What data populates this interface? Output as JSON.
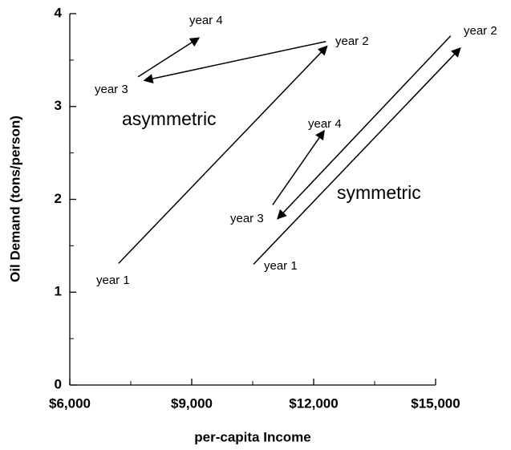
{
  "chart_data": {
    "type": "arrows",
    "x_label": "per-capita Income",
    "y_label": "Oil Demand (tons/person)",
    "xlim": [
      6000,
      15000
    ],
    "ylim": [
      0,
      4
    ],
    "xticks": [
      {
        "value": 6000,
        "label": "$6,000"
      },
      {
        "value": 9000,
        "label": "$9,000"
      },
      {
        "value": 12000,
        "label": "$12,000"
      },
      {
        "value": 15000,
        "label": "$15,000"
      }
    ],
    "xminor_ticks": [
      7500,
      10500,
      13500
    ],
    "yticks": [
      0,
      1,
      2,
      3,
      4
    ],
    "yminor_ticks": [
      0.5,
      1.5,
      2.5,
      3.5
    ],
    "color": "#000000",
    "arrows": [
      {
        "x": [
          7200,
          12330
        ],
        "y": [
          1.31,
          3.65
        ]
      },
      {
        "x": [
          12300,
          7830
        ],
        "y": [
          3.7,
          3.28
        ]
      },
      {
        "x": [
          7680,
          9180
        ],
        "y": [
          3.32,
          3.74
        ]
      },
      {
        "x": [
          10520,
          15610
        ],
        "y": [
          1.3,
          3.63
        ]
      },
      {
        "x": [
          15370,
          11110
        ],
        "y": [
          3.76,
          1.79
        ]
      },
      {
        "x": [
          10990,
          12260
        ],
        "y": [
          1.94,
          2.74
        ]
      }
    ],
    "annotations": [
      "year 1",
      "year 2",
      "year 3",
      "year 4",
      "asymmetric",
      "year 1",
      "year 2",
      "year 3",
      "year 4",
      "symmetric"
    ]
  }
}
